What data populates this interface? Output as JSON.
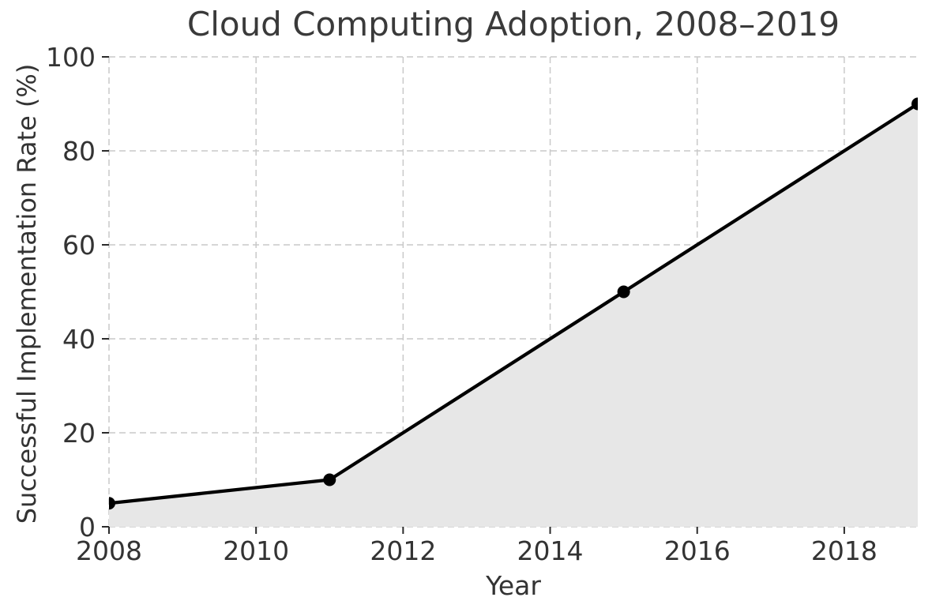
{
  "chart_data": {
    "type": "area",
    "title": "Cloud Computing Adoption, 2008–2019",
    "xlabel": "Year",
    "ylabel": "Successful Implementation Rate (%)",
    "x": [
      2008,
      2011,
      2015,
      2019
    ],
    "values": [
      5,
      10,
      50,
      90
    ],
    "xlim": [
      2008,
      2019
    ],
    "ylim": [
      0,
      100
    ],
    "x_ticks": [
      2008,
      2010,
      2012,
      2014,
      2016,
      2018
    ],
    "y_ticks": [
      0,
      20,
      40,
      60,
      80,
      100
    ],
    "grid": "dashed",
    "legend": "none",
    "line_color": "#000000",
    "marker": "circle",
    "marker_color": "#000000",
    "fill_color": "#e7e7e7",
    "grid_color": "#c9c9c9",
    "tick_color": "#2b2b2b",
    "text_color": "#333333",
    "title_color": "#3a3a3a",
    "background_color": "#ffffff"
  }
}
